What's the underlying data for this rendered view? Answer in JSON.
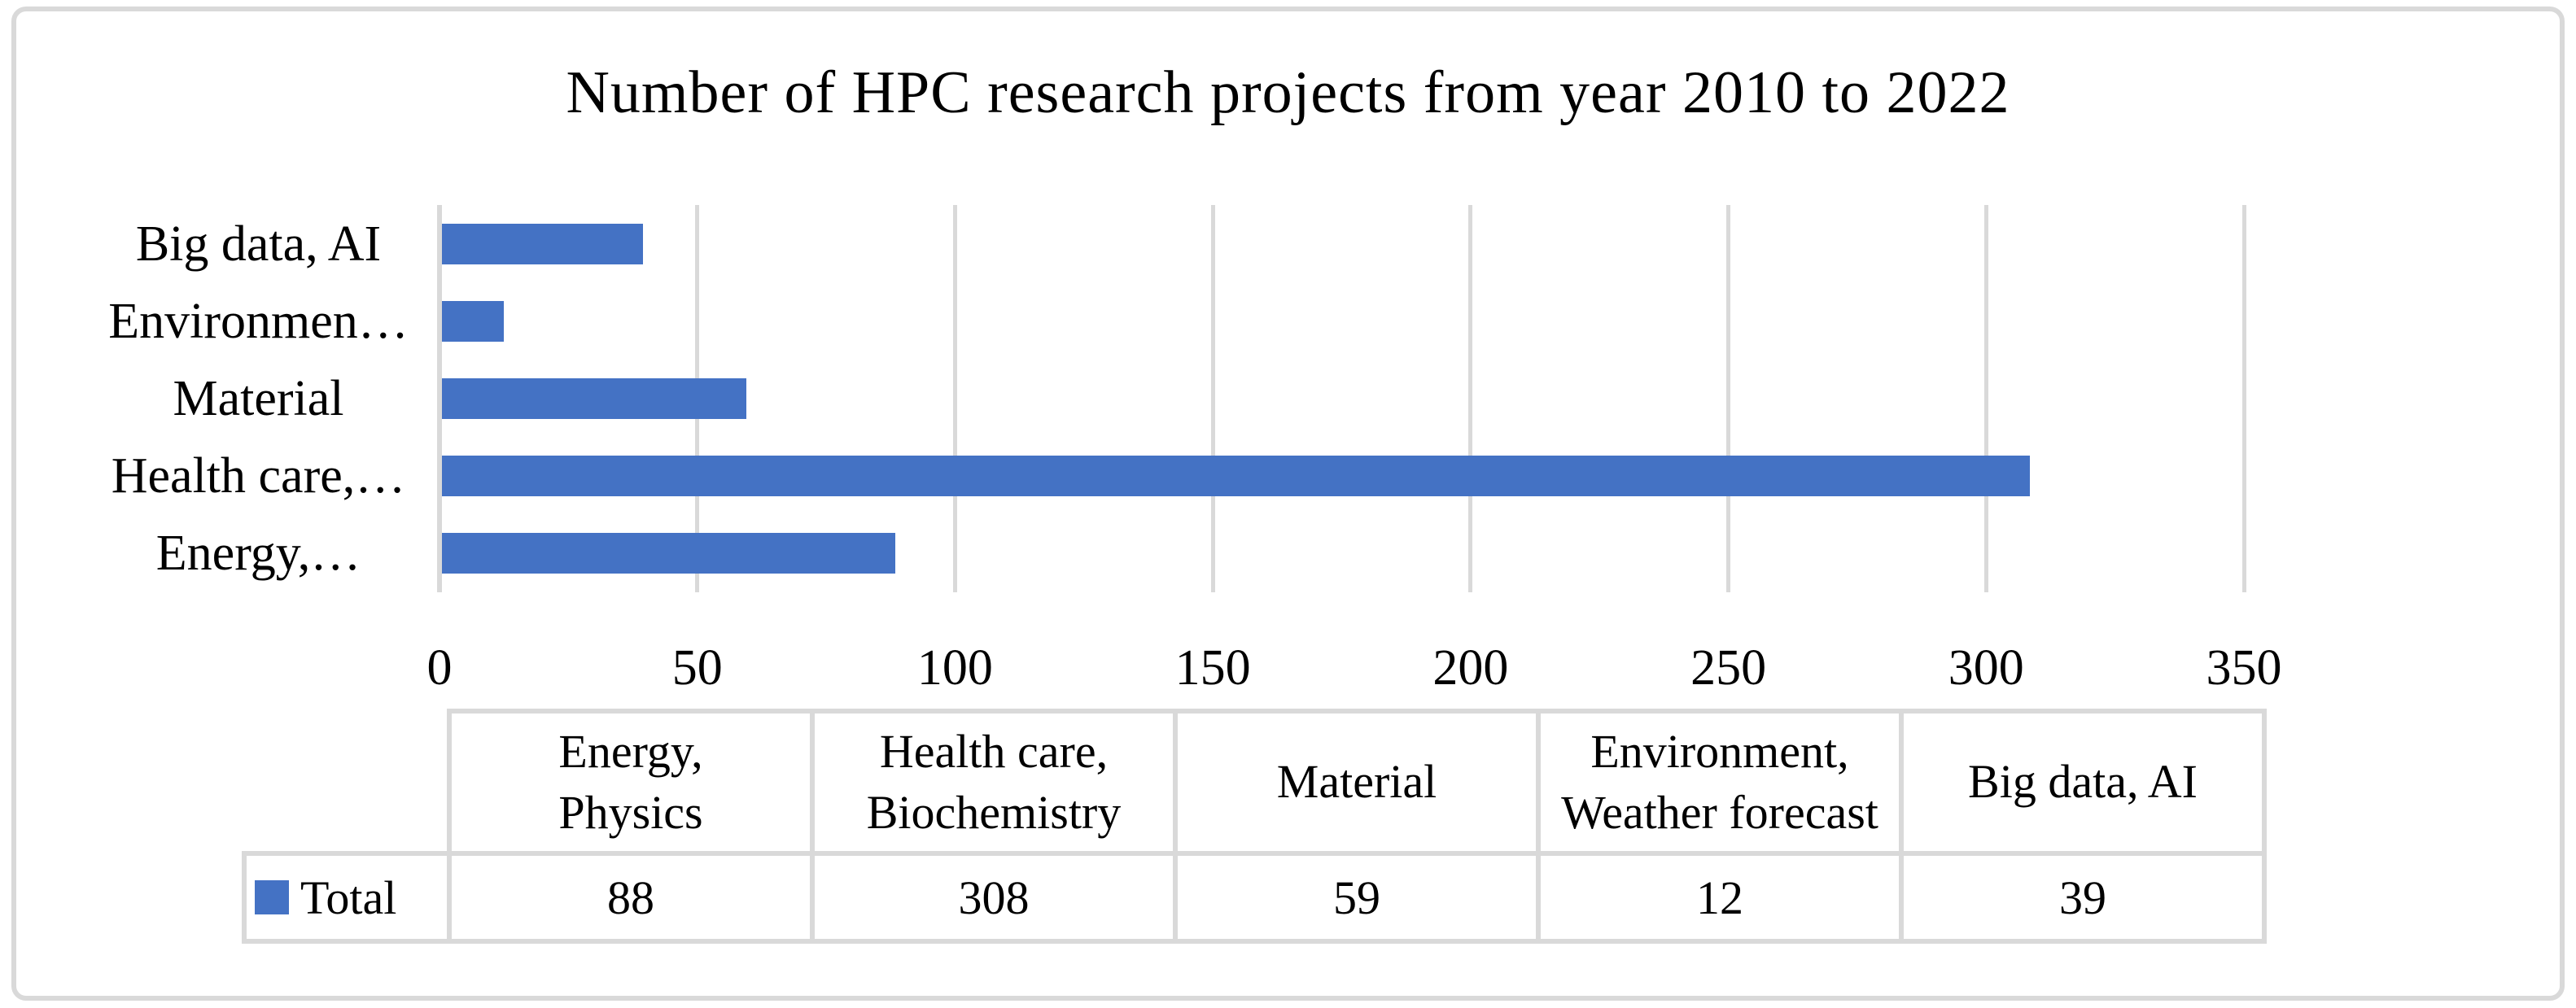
{
  "colors": {
    "bar": "#4472C4",
    "gridline": "#D9D9D9",
    "frame_border": "#D9D9D9",
    "table_border": "#D9D9D9",
    "text": "#000000",
    "background": "#FFFFFF"
  },
  "chart_data": {
    "type": "bar",
    "orientation": "horizontal",
    "title": "Number of HPC research projects from year 2010 to 2022",
    "xlabel": "",
    "ylabel": "",
    "xlim": [
      0,
      350
    ],
    "x_ticks": [
      0,
      50,
      100,
      150,
      200,
      250,
      300,
      350
    ],
    "grid": true,
    "bar_color": "#4472C4",
    "categories": [
      "Energy, Physics",
      "Health care, Biochemistry",
      "Material",
      "Environment, Weather forecast",
      "Big data, AI"
    ],
    "series": [
      {
        "name": "Total",
        "values": [
          88,
          308,
          59,
          12,
          39
        ]
      }
    ],
    "bars_top_to_bottom": [
      {
        "label": "Big data, AI",
        "value": 39
      },
      {
        "label": "Environmen…",
        "value": 12
      },
      {
        "label": "Material",
        "value": 59
      },
      {
        "label": "Health care,…",
        "value": 308
      },
      {
        "label": "Energy,…",
        "value": 88
      }
    ],
    "data_table": {
      "legend_label": "Total",
      "header_cells": [
        [
          "Energy,",
          "Physics"
        ],
        [
          "Health care,",
          "Biochemistry"
        ],
        [
          "Material"
        ],
        [
          "Environment,",
          "Weather forecast"
        ],
        [
          "Big data, AI"
        ]
      ],
      "values": [
        "88",
        "308",
        "59",
        "12",
        "39"
      ]
    }
  }
}
